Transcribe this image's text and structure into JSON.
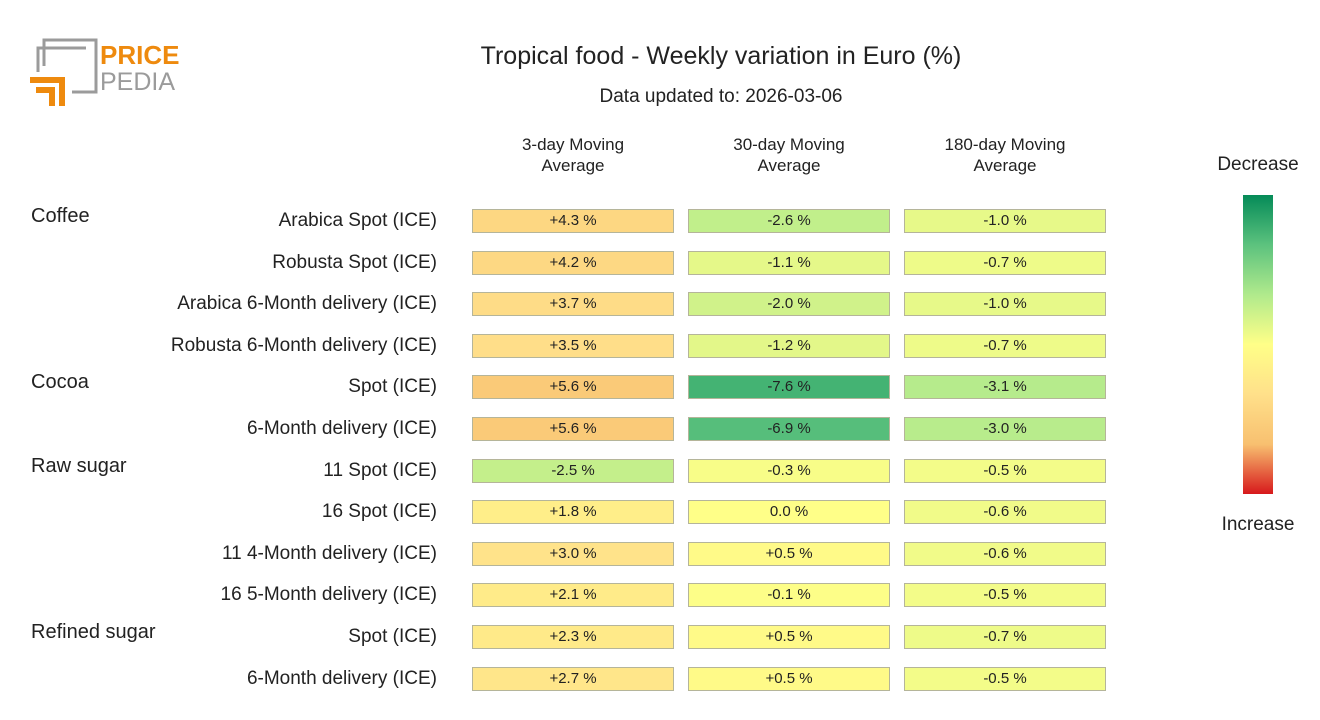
{
  "logo": {
    "top": "PRICE",
    "bottom": "PEDIA"
  },
  "chart_data": {
    "type": "heatmap",
    "title": "Tropical food - Weekly variation in Euro (%)",
    "subtitle": "Data updated to: 2026-03-06",
    "columns": [
      "3-day Moving Average",
      "30-day Moving Average",
      "180-day Moving Average"
    ],
    "groups": [
      {
        "name": "Coffee",
        "rows": [
          {
            "label": "Arabica Spot (ICE)",
            "values": [
              4.3,
              -2.6,
              -1.0
            ],
            "value_labels": [
              "+4.3 %",
              "-2.6 %",
              "-1.0 %"
            ]
          },
          {
            "label": "Robusta Spot (ICE)",
            "values": [
              4.2,
              -1.1,
              -0.7
            ],
            "value_labels": [
              "+4.2 %",
              "-1.1 %",
              "-0.7 %"
            ]
          },
          {
            "label": "Arabica 6-Month delivery (ICE)",
            "values": [
              3.7,
              -2.0,
              -1.0
            ],
            "value_labels": [
              "+3.7 %",
              "-2.0 %",
              "-1.0 %"
            ]
          },
          {
            "label": "Robusta 6-Month delivery (ICE)",
            "values": [
              3.5,
              -1.2,
              -0.7
            ],
            "value_labels": [
              "+3.5 %",
              "-1.2 %",
              "-0.7 %"
            ]
          }
        ]
      },
      {
        "name": "Cocoa",
        "rows": [
          {
            "label": "Spot (ICE)",
            "values": [
              5.6,
              -7.6,
              -3.1
            ],
            "value_labels": [
              "+5.6 %",
              "-7.6 %",
              "-3.1 %"
            ]
          },
          {
            "label": "6-Month delivery (ICE)",
            "values": [
              5.6,
              -6.9,
              -3.0
            ],
            "value_labels": [
              "+5.6 %",
              "-6.9 %",
              "-3.0 %"
            ]
          }
        ]
      },
      {
        "name": "Raw sugar",
        "rows": [
          {
            "label": "11 Spot (ICE)",
            "values": [
              -2.5,
              -0.3,
              -0.5
            ],
            "value_labels": [
              "-2.5 %",
              "-0.3 %",
              "-0.5 %"
            ]
          },
          {
            "label": "16 Spot (ICE)",
            "values": [
              1.8,
              0.0,
              -0.6
            ],
            "value_labels": [
              "+1.8 %",
              "0.0 %",
              "-0.6 %"
            ]
          },
          {
            "label": "11 4-Month delivery (ICE)",
            "values": [
              3.0,
              0.5,
              -0.6
            ],
            "value_labels": [
              "+3.0 %",
              "+0.5 %",
              "-0.6 %"
            ]
          },
          {
            "label": "16 5-Month delivery (ICE)",
            "values": [
              2.1,
              -0.1,
              -0.5
            ],
            "value_labels": [
              "+2.1 %",
              "-0.1 %",
              "-0.5 %"
            ]
          }
        ]
      },
      {
        "name": "Refined sugar",
        "rows": [
          {
            "label": "Spot (ICE)",
            "values": [
              2.3,
              0.5,
              -0.7
            ],
            "value_labels": [
              "+2.3 %",
              "+0.5 %",
              "-0.7 %"
            ]
          },
          {
            "label": "6-Month delivery (ICE)",
            "values": [
              2.7,
              0.5,
              -0.5
            ],
            "value_labels": [
              "+2.7 %",
              "+0.5 %",
              "-0.5 %"
            ]
          }
        ]
      }
    ],
    "colorbar": {
      "top_label": "Decrease",
      "bottom_label": "Increase",
      "zlim": [
        -10,
        10
      ],
      "colors": [
        "#058b58",
        "#5cc27e",
        "#b0ea8c",
        "#ffff88",
        "#ffe08a",
        "#f8c070",
        "#d7191c"
      ]
    }
  }
}
